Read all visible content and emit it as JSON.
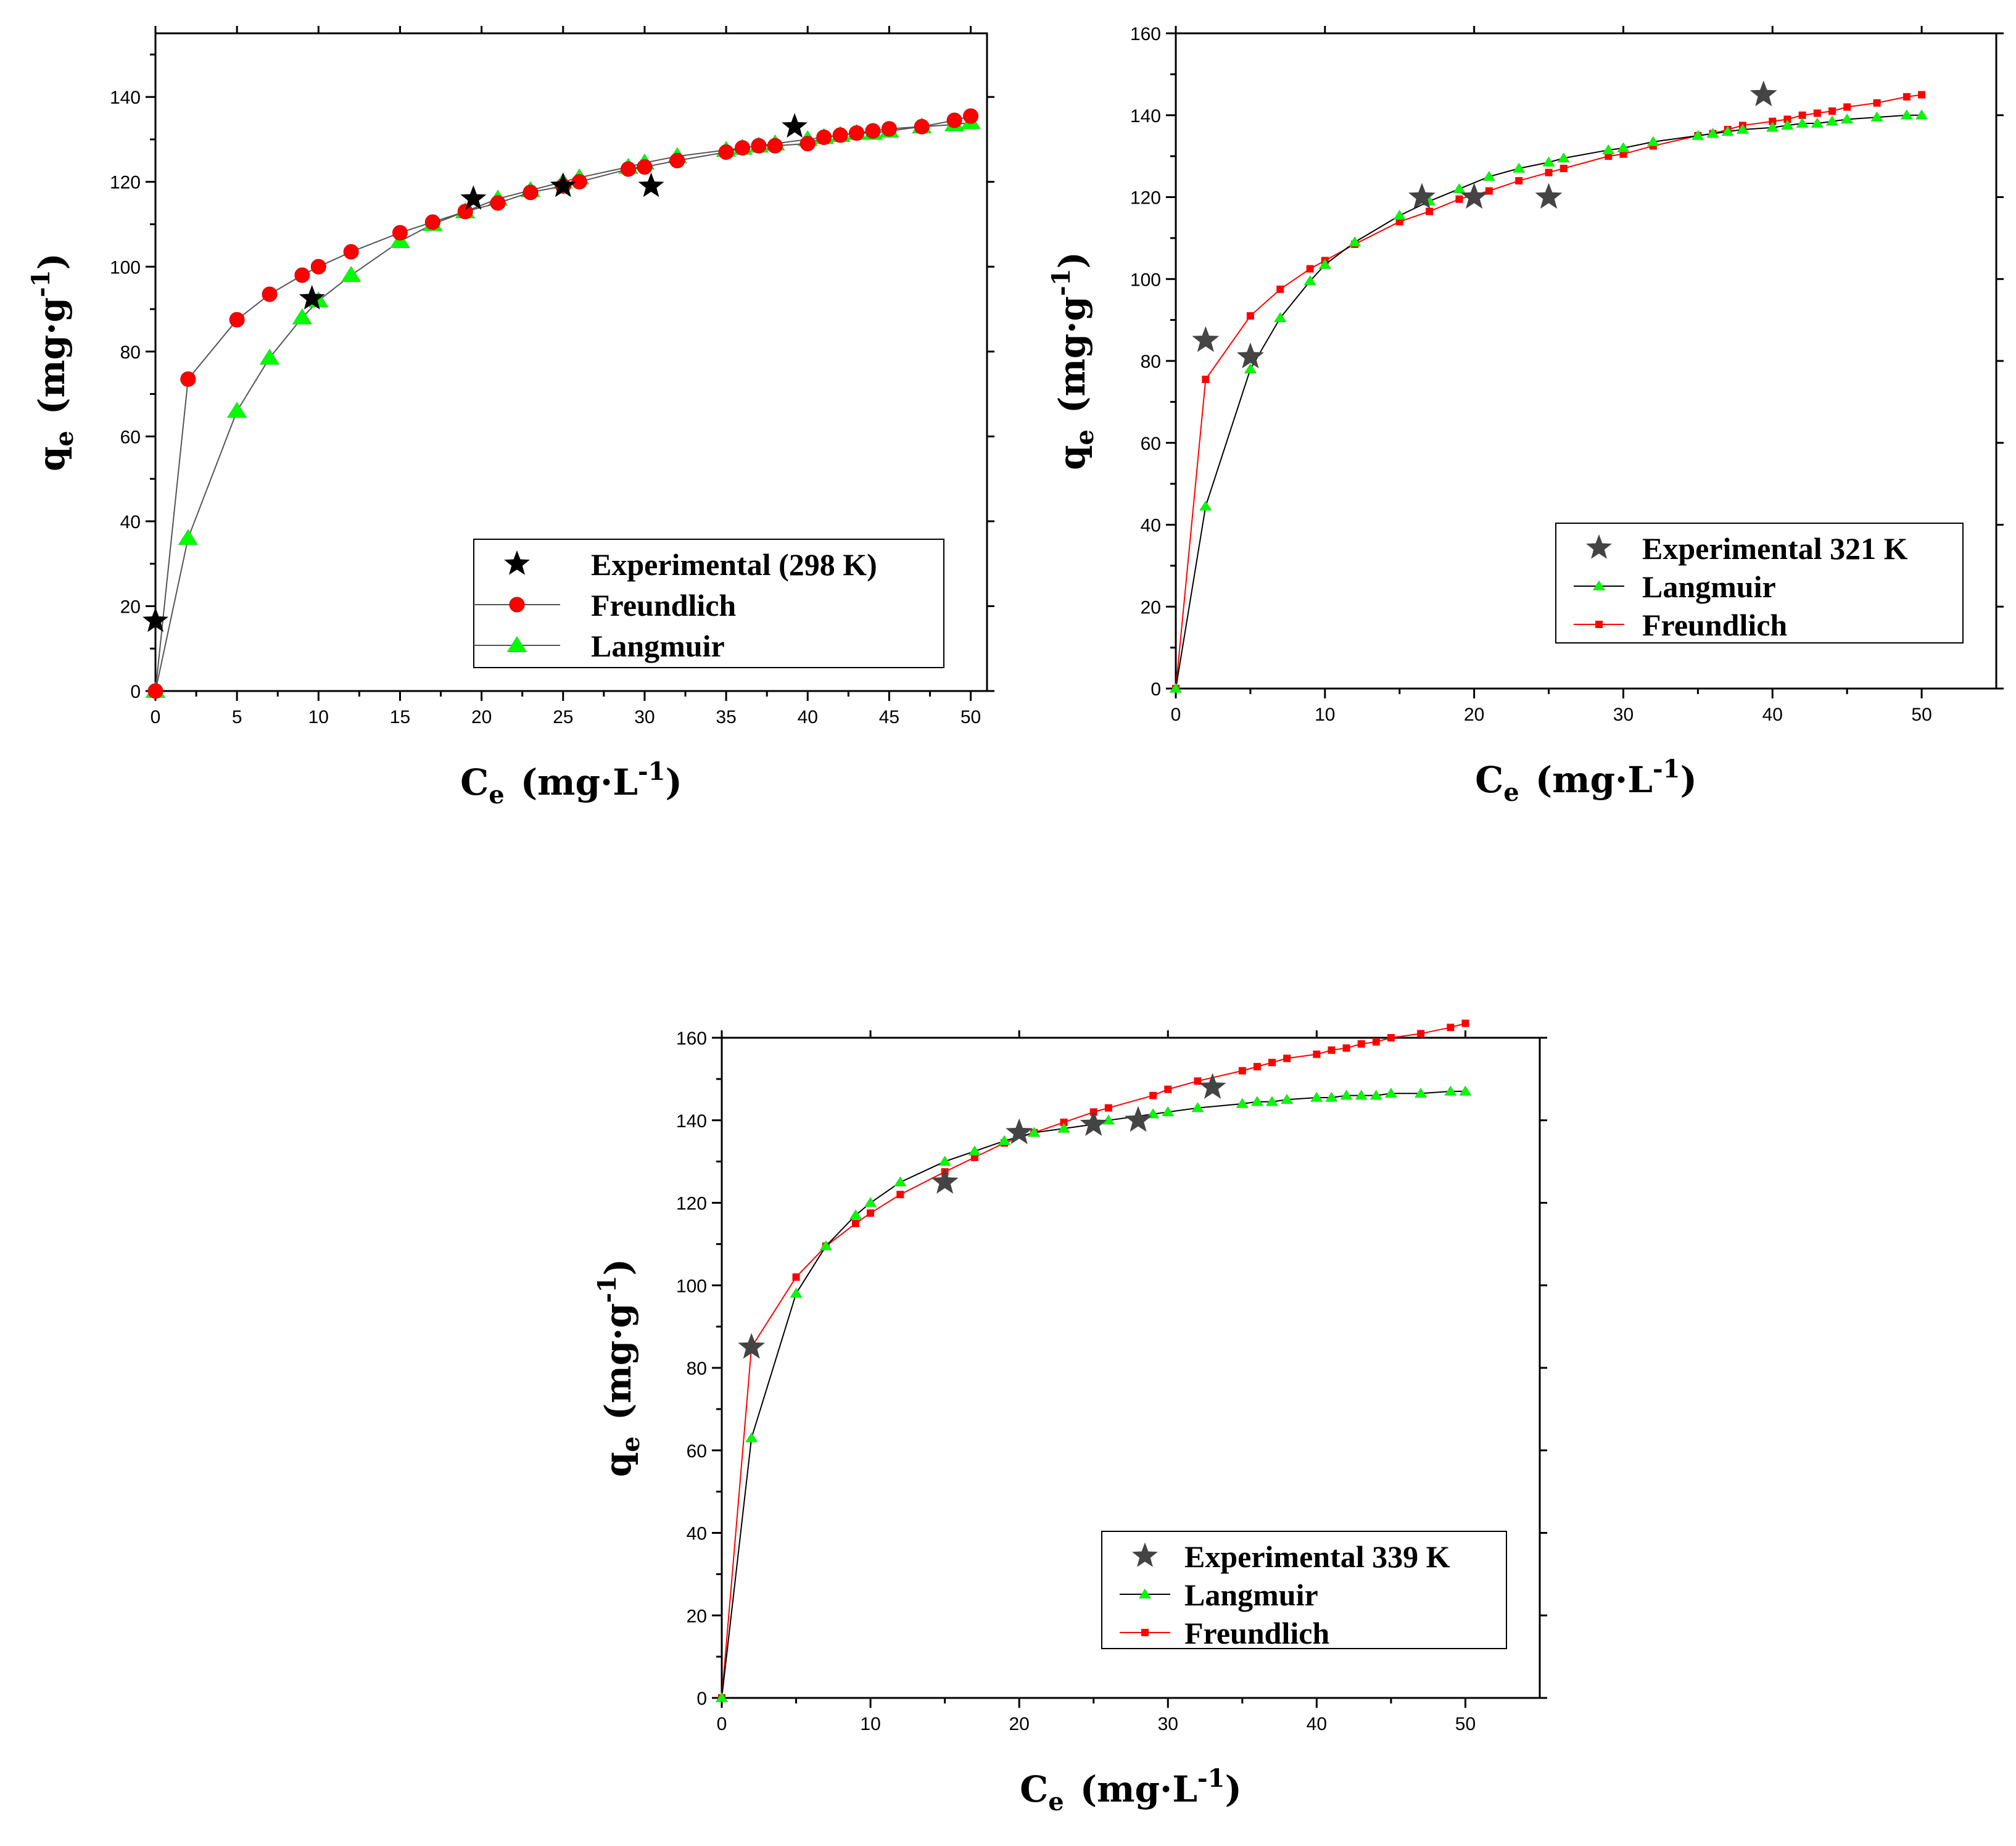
{
  "colors": {
    "black": "#000000",
    "star_gray": "#444444",
    "red": "#ff0000",
    "green": "#00ff00",
    "line_gray": "#555555"
  },
  "chart_data": [
    {
      "type": "scatter",
      "id": "c1",
      "title": "",
      "xlabel": {
        "main": "C",
        "sub": "e",
        "units": "(mg·L",
        "sup": "-1",
        "close": ")"
      },
      "ylabel": {
        "main": "q",
        "sub": "e",
        "units": "(mg·g",
        "sup": "-1",
        "close": ")"
      },
      "xlim": [
        0,
        51
      ],
      "ylim": [
        0,
        155
      ],
      "xticks": [
        0,
        5,
        10,
        15,
        20,
        25,
        30,
        35,
        40,
        45,
        50
      ],
      "yticks": [
        0,
        20,
        40,
        60,
        80,
        100,
        120,
        140
      ],
      "legend_position": "bottom-right",
      "series": [
        {
          "name": "Experimental (298 K)",
          "marker": "star",
          "color": "#000000",
          "line": false,
          "x": [
            0,
            9.6,
            19.5,
            25,
            30.4,
            39.2
          ],
          "y": [
            16.5,
            92.5,
            116,
            119,
            119,
            133
          ]
        },
        {
          "name": "Freundlich",
          "marker": "circle",
          "color": "#ff0000",
          "line": true,
          "lineColor": "#555555",
          "x": [
            0,
            2,
            5,
            7,
            9,
            10,
            12,
            15,
            17,
            19,
            21,
            23,
            25,
            26,
            29,
            30,
            32,
            35,
            36,
            37,
            38,
            40,
            41,
            42,
            43,
            44,
            45,
            47,
            49,
            50
          ],
          "y": [
            0,
            73.5,
            87.5,
            93.5,
            98,
            100,
            103.5,
            108,
            110.5,
            113,
            115,
            117.5,
            119,
            120,
            123,
            123.5,
            125,
            127,
            128,
            128.5,
            128.5,
            129,
            130.5,
            131,
            131.5,
            132,
            132.5,
            133,
            134.5,
            135.5
          ]
        },
        {
          "name": "Langmuir",
          "marker": "triangle",
          "color": "#00ff00",
          "line": true,
          "lineColor": "#555555",
          "x": [
            0,
            2,
            5,
            7,
            9,
            10,
            12,
            15,
            17,
            19,
            21,
            23,
            25,
            26,
            29,
            30,
            32,
            35,
            36,
            37,
            38,
            40,
            41,
            42,
            43,
            44,
            45,
            47,
            49,
            50
          ],
          "y": [
            0,
            36,
            66,
            78.5,
            88,
            92,
            98,
            106,
            110,
            113,
            116,
            118,
            120,
            121,
            123.5,
            124.5,
            126,
            127.5,
            128,
            128.5,
            129,
            130,
            130.5,
            131,
            131.5,
            131.5,
            132,
            133,
            133.5,
            134
          ]
        }
      ]
    },
    {
      "type": "scatter",
      "id": "c2",
      "title": "",
      "xlabel": {
        "main": "C",
        "sub": "e",
        "units": "(mg·L",
        "sup": "-1",
        "close": ")"
      },
      "ylabel": {
        "main": "q",
        "sub": "e",
        "units": "(mg·g",
        "sup": "-1",
        "close": ")"
      },
      "xlim": [
        0,
        55
      ],
      "ylim": [
        0,
        160
      ],
      "xticks": [
        0,
        10,
        20,
        30,
        40,
        50
      ],
      "yticks": [
        0,
        20,
        40,
        60,
        80,
        100,
        120,
        140,
        160
      ],
      "legend_position": "bottom-right",
      "series": [
        {
          "name": "Experimental 321 K",
          "marker": "star",
          "color": "#444444",
          "line": false,
          "x": [
            2,
            5,
            16.5,
            20,
            25,
            39.4
          ],
          "y": [
            85,
            81,
            120,
            120,
            120,
            145
          ]
        },
        {
          "name": "Langmuir",
          "marker": "triangle",
          "color": "#00ff00",
          "line": true,
          "lineColor": "#000000",
          "x": [
            0,
            2,
            5,
            7,
            9,
            10,
            12,
            15,
            17,
            19,
            21,
            23,
            25,
            26,
            29,
            30,
            32,
            35,
            36,
            37,
            38,
            40,
            41,
            42,
            43,
            44,
            45,
            47,
            49,
            50
          ],
          "y": [
            0,
            44.5,
            78,
            90.5,
            99.5,
            103.5,
            109,
            115.5,
            119,
            122,
            125,
            127,
            128.5,
            129.5,
            131.5,
            132,
            133.5,
            135,
            135.5,
            136,
            136.5,
            137,
            137.5,
            138,
            138,
            138.5,
            139,
            139.5,
            140,
            140
          ]
        },
        {
          "name": "Freundlich",
          "marker": "square",
          "color": "#ff0000",
          "line": true,
          "lineColor": "#ff0000",
          "x": [
            0,
            2,
            5,
            7,
            9,
            10,
            12,
            15,
            17,
            19,
            21,
            23,
            25,
            26,
            29,
            30,
            32,
            35,
            36,
            37,
            38,
            40,
            41,
            42,
            43,
            44,
            45,
            47,
            49,
            50
          ],
          "y": [
            0,
            75.5,
            91,
            97.5,
            102.5,
            104.5,
            108.5,
            114,
            116.5,
            119.5,
            121.5,
            124,
            126,
            127,
            130,
            130.5,
            132.5,
            135,
            135.5,
            136.5,
            137.5,
            138.5,
            139,
            140,
            140.5,
            141,
            142,
            143,
            144.5,
            145
          ]
        }
      ]
    },
    {
      "type": "scatter",
      "id": "c3",
      "title": "",
      "xlabel": {
        "main": "C",
        "sub": "e",
        "units": "(mg·L",
        "sup": "-1",
        "close": ")"
      },
      "ylabel": {
        "main": "q",
        "sub": "e",
        "units": "(mg·g",
        "sup": "-1",
        "close": ")"
      },
      "xlim": [
        0,
        55
      ],
      "ylim": [
        0,
        160
      ],
      "xticks": [
        0,
        10,
        20,
        30,
        40,
        50
      ],
      "yticks": [
        0,
        20,
        40,
        60,
        80,
        100,
        120,
        140,
        160
      ],
      "legend_position": "bottom-right",
      "series": [
        {
          "name": "Experimental 339 K",
          "marker": "star",
          "color": "#444444",
          "line": false,
          "x": [
            2,
            15,
            20,
            25,
            28,
            33
          ],
          "y": [
            85,
            125,
            137,
            139,
            140,
            148
          ]
        },
        {
          "name": "Langmuir",
          "marker": "triangle",
          "color": "#00ff00",
          "line": true,
          "lineColor": "#000000",
          "x": [
            0,
            2,
            5,
            7,
            9,
            10,
            12,
            15,
            17,
            19,
            21,
            23,
            25,
            26,
            29,
            30,
            32,
            35,
            36,
            37,
            38,
            40,
            41,
            42,
            43,
            44,
            45,
            47,
            49,
            50
          ],
          "y": [
            0,
            63,
            98,
            109.5,
            117,
            120,
            125,
            130,
            132.5,
            135,
            137,
            138,
            139,
            140,
            141.5,
            142,
            143,
            144,
            144.5,
            144.5,
            145,
            145.5,
            145.5,
            146,
            146,
            146,
            146.5,
            146.5,
            147,
            147
          ]
        },
        {
          "name": "Freundlich",
          "marker": "square",
          "color": "#ff0000",
          "line": true,
          "lineColor": "#ff0000",
          "x": [
            0,
            2,
            5,
            7,
            9,
            10,
            12,
            15,
            17,
            19,
            21,
            23,
            25,
            26,
            29,
            30,
            32,
            35,
            36,
            37,
            38,
            40,
            41,
            42,
            43,
            44,
            45,
            47,
            49,
            50
          ],
          "y": [
            0,
            85,
            102,
            109.5,
            115,
            117.5,
            122,
            127.5,
            131,
            134.5,
            137,
            139.5,
            142,
            143,
            146,
            147.5,
            149.5,
            152,
            153,
            154,
            155,
            156,
            157,
            157.5,
            158.5,
            159,
            160,
            161,
            162.5,
            163.5
          ]
        }
      ]
    }
  ]
}
